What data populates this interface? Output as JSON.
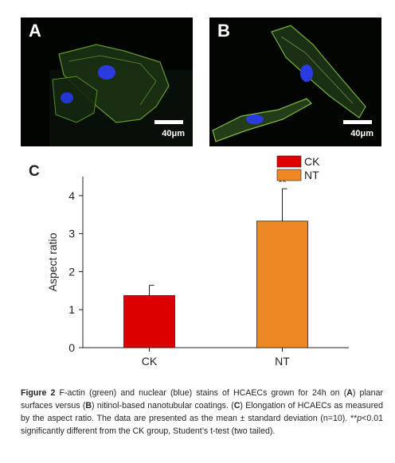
{
  "panels": [
    {
      "letter": "A",
      "scale_label": "40μm",
      "image_description_icon": "fluorescence-micrograph-planar"
    },
    {
      "letter": "B",
      "scale_label": "40μm",
      "image_description_icon": "fluorescence-micrograph-nanotubular"
    }
  ],
  "chart_panel_letter": "C",
  "chart_data": {
    "type": "bar",
    "categories": [
      "CK",
      "NT"
    ],
    "values": [
      1.37,
      3.33
    ],
    "errors": [
      0.27,
      0.85
    ],
    "significance": [
      "",
      "**"
    ],
    "colors": [
      "#dd0000",
      "#ee8822"
    ],
    "legend": [
      {
        "name": "CK",
        "color": "#dd0000"
      },
      {
        "name": "NT",
        "color": "#ee8822"
      }
    ],
    "legend_position": "top-right",
    "ylabel": "Aspect ratio",
    "xlabel": "",
    "ylim": [
      0,
      4.5
    ],
    "yticks": [
      "0",
      "1",
      "2",
      "3",
      "4"
    ],
    "grid": false
  },
  "caption": {
    "figure_label": "Figure 2",
    "text_1": " F-actin (green) and nuclear (blue) stains of HCAECs grown for 24h on (",
    "a_label": "A",
    "text_2": ") planar surfaces versus (",
    "b_label": "B",
    "text_3": ") nitinol-based nanotubular coatings. (",
    "c_label": "C",
    "text_4": ") Elongation of HCAECs as measured by the aspect ratio. The data are presented as the mean ± standard deviation (n=10). **",
    "p_symbol": "p",
    "text_5": "<0.01 significantly different from the CK group, Student’s t-test (two tailed)."
  }
}
